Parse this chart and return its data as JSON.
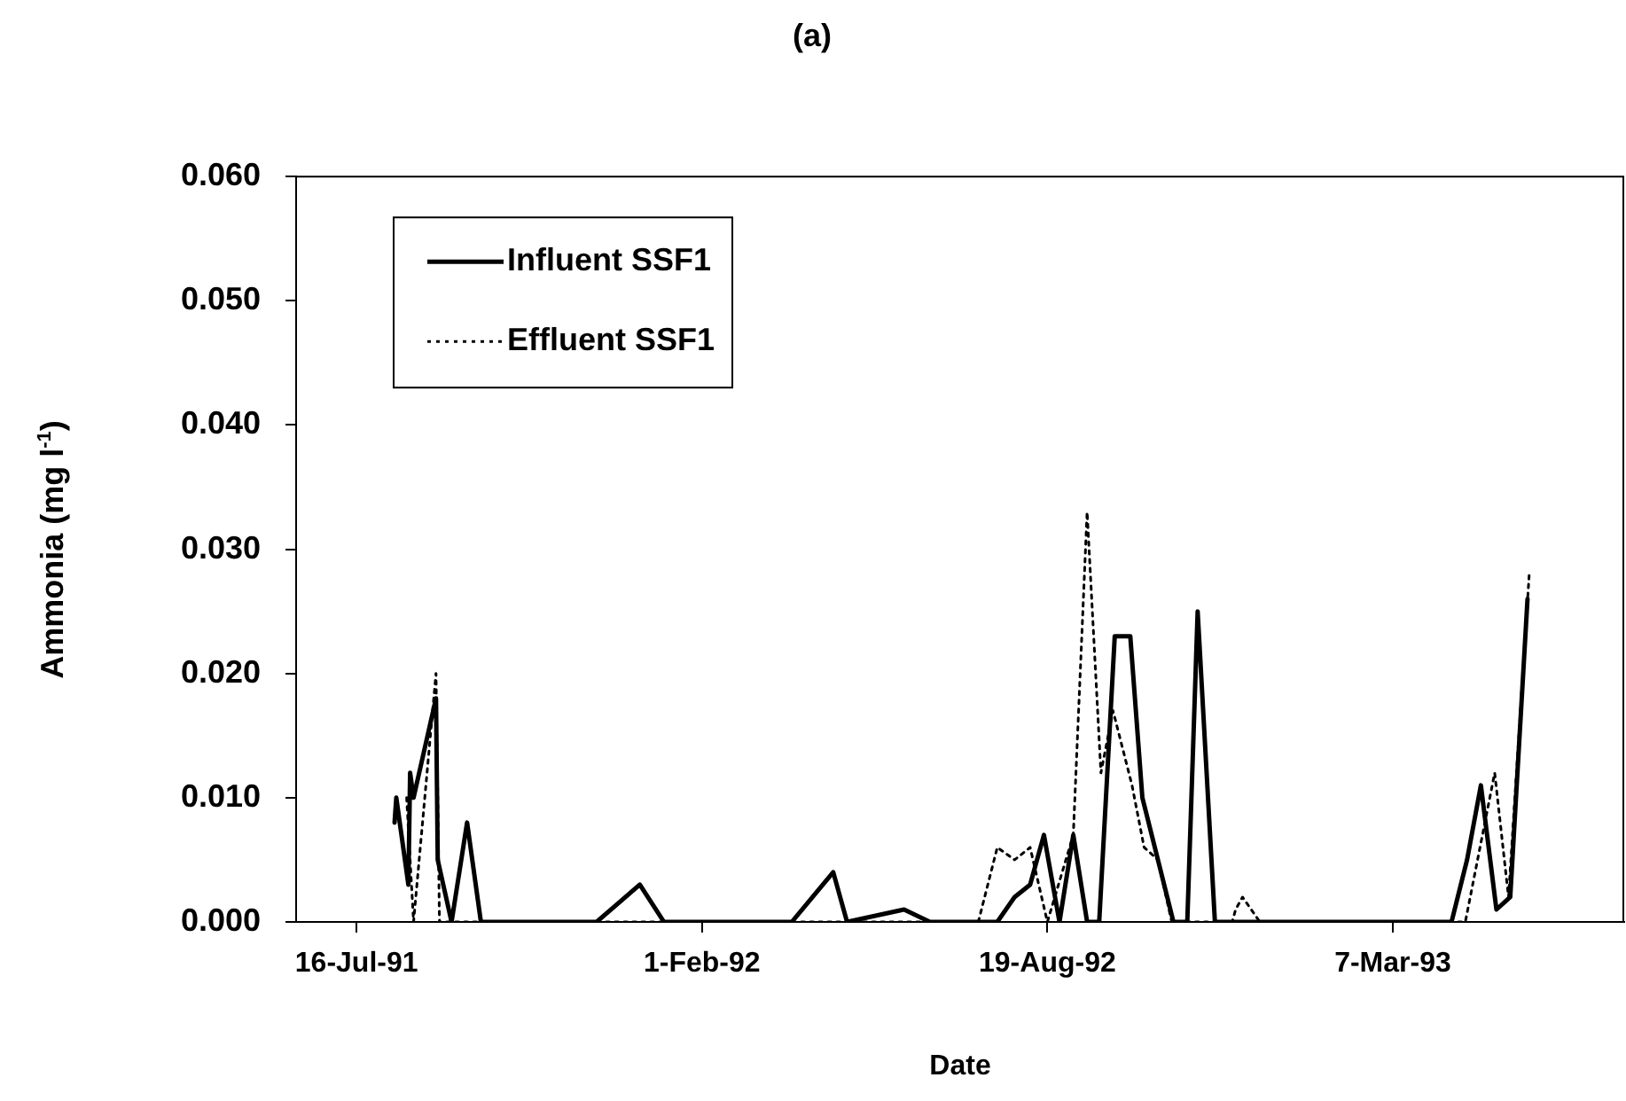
{
  "chart_data": {
    "type": "line",
    "title": "(a)",
    "xlabel": "Date",
    "ylabel": "Ammonia (mg l$^{-1}$)",
    "xlim": [
      "1991-06-11",
      "1993-07-19"
    ],
    "xticks": [
      {
        "value": "1991-07-16",
        "label": "16-Jul-91"
      },
      {
        "value": "1992-02-01",
        "label": "1-Feb-92"
      },
      {
        "value": "1992-08-19",
        "label": "19-Aug-92"
      },
      {
        "value": "1993-03-07",
        "label": "7-Mar-93"
      }
    ],
    "ylim": [
      0,
      0.06
    ],
    "yticks": [
      {
        "value": 0,
        "label": "0.000"
      },
      {
        "value": 0.01,
        "label": "0.010"
      },
      {
        "value": 0.02,
        "label": "0.020"
      },
      {
        "value": 0.03,
        "label": "0.030"
      },
      {
        "value": 0.04,
        "label": "0.040"
      },
      {
        "value": 0.05,
        "label": "0.050"
      },
      {
        "value": 0.06,
        "label": "0.060"
      }
    ],
    "grid": false,
    "legend": "top left",
    "marker": "none",
    "series": [
      {
        "name": "Influent SSF1",
        "color": "#000000",
        "line_style": "solid",
        "x": [
          "1991-08-07",
          "1991-08-08",
          "1991-08-15",
          "1991-08-16",
          "1991-08-18",
          "1991-08-31",
          "1991-09-01",
          "1991-09-09",
          "1991-09-18",
          "1991-09-26",
          "1991-12-02",
          "1991-12-27",
          "1992-01-10",
          "1992-03-24",
          "1992-04-17",
          "1992-04-25",
          "1992-05-28",
          "1992-06-12",
          "1992-07-21",
          "1992-07-31",
          "1992-08-09",
          "1992-08-17",
          "1992-08-26",
          "1992-09-03",
          "1992-09-11",
          "1992-09-18",
          "1992-09-27",
          "1992-10-06",
          "1992-10-13",
          "1992-10-22",
          "1992-10-31",
          "1992-11-08",
          "1992-11-14",
          "1992-11-24",
          "1993-04-10",
          "1993-04-19",
          "1993-04-27",
          "1993-05-06",
          "1993-05-14",
          "1993-05-24"
        ],
        "values": [
          0.008,
          0.01,
          0.003,
          0.012,
          0.01,
          0.018,
          0.005,
          0,
          0.008,
          0,
          0,
          0.003,
          0,
          0,
          0.004,
          0,
          0.001,
          0,
          0,
          0.002,
          0.003,
          0.007,
          0,
          0.007,
          0,
          0,
          0.023,
          0.023,
          0.01,
          0.005,
          0,
          0,
          0.025,
          0,
          0,
          0.005,
          0.011,
          0.001,
          0.002,
          0.026
        ]
      },
      {
        "name": "Effluent SSF1",
        "color": "#000000",
        "line_style": "dotted",
        "x": [
          "1991-08-14",
          "1991-08-18",
          "1991-08-31",
          "1991-09-02",
          "1992-07-10",
          "1992-07-21",
          "1992-07-31",
          "1992-08-09",
          "1992-08-19",
          "1992-09-03",
          "1992-09-11",
          "1992-09-19",
          "1992-09-26",
          "1992-10-07",
          "1992-10-14",
          "1992-10-22",
          "1992-10-30",
          "1992-12-04",
          "1992-12-06",
          "1992-12-10",
          "1992-12-15",
          "1992-12-20",
          "1993-04-18",
          "1993-05-05",
          "1993-05-13",
          "1993-05-25"
        ],
        "values": [
          0.01,
          0,
          0.02,
          0,
          0,
          0.006,
          0.005,
          0.006,
          0,
          0.007,
          0.033,
          0.012,
          0.017,
          0.011,
          0.006,
          0.005,
          0,
          0,
          0.001,
          0.002,
          0.001,
          0,
          0,
          0.012,
          0.002,
          0.028
        ]
      }
    ]
  }
}
